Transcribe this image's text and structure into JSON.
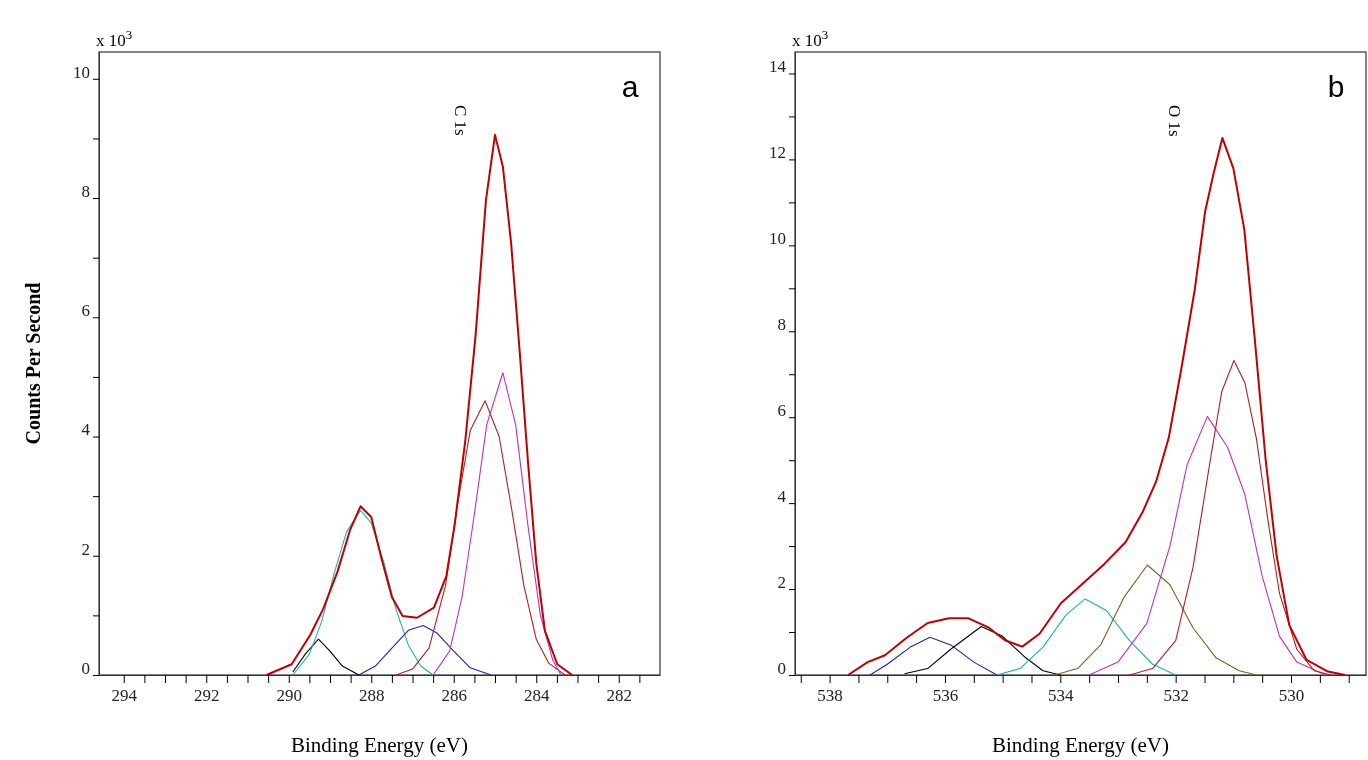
{
  "chart_data": [
    {
      "type": "line",
      "title": "a",
      "xlabel": "Binding Energy (eV)",
      "ylabel": "Counts Per Second",
      "annotations": [
        "x 10$^{3}$",
        "C 1s"
      ],
      "xlim": [
        294.6,
        281
      ],
      "ylim": [
        0,
        10.45
      ],
      "xticks": [
        294,
        {
          "value": 293.5,
          "label": null
        },
        {
          "value": 293,
          "label": null
        },
        {
          "value": 292.5,
          "label": null
        },
        292,
        {
          "value": 291.5,
          "label": null
        },
        {
          "value": 291,
          "label": null
        },
        {
          "value": 290.5,
          "label": null
        },
        290,
        {
          "value": 289.5,
          "label": null
        },
        {
          "value": 289,
          "label": null
        },
        {
          "value": 288.5,
          "label": null
        },
        288,
        {
          "value": 287.5,
          "label": null
        },
        {
          "value": 287,
          "label": null
        },
        {
          "value": 286.5,
          "label": null
        },
        286,
        {
          "value": 285.5,
          "label": null
        },
        {
          "value": 285,
          "label": null
        },
        {
          "value": 284.5,
          "label": null
        },
        284,
        {
          "value": 283.5,
          "label": null
        },
        {
          "value": 283,
          "label": null
        },
        {
          "value": 282.5,
          "label": null
        },
        282,
        {
          "value": 281.5,
          "label": null
        }
      ],
      "yticks": [
        0,
        {
          "value": 1,
          "label": null
        },
        2,
        {
          "value": 3,
          "label": null
        },
        4,
        {
          "value": 5,
          "label": null
        },
        6,
        {
          "value": 7,
          "label": null
        },
        8,
        {
          "value": 9,
          "label": null
        },
        10
      ],
      "series": [
        {
          "color": "#000000",
          "x": [
            289.9,
            289.6,
            289.28,
            289.0,
            288.7,
            288.3
          ],
          "values": [
            0.05,
            0.35,
            0.6,
            0.4,
            0.15,
            0
          ]
        },
        {
          "color": "#20b0b0",
          "x": [
            289.9,
            289.5,
            289.2,
            288.9,
            288.6,
            288.26,
            288.0,
            287.7,
            287.4,
            287.1,
            286.8,
            286.5
          ],
          "values": [
            0,
            0.35,
            0.9,
            1.7,
            2.4,
            2.76,
            2.55,
            1.9,
            1.1,
            0.5,
            0.15,
            0
          ]
        },
        {
          "color": "#2020c0",
          "x": [
            288.3,
            287.9,
            287.5,
            287.1,
            286.74,
            286.4,
            286.0,
            285.6,
            285.1
          ],
          "values": [
            0,
            0.15,
            0.45,
            0.75,
            0.83,
            0.7,
            0.4,
            0.12,
            0
          ]
        },
        {
          "color": "#b02020",
          "x": [
            287.4,
            287.0,
            286.6,
            286.2,
            285.9,
            285.6,
            285.24,
            284.9,
            284.6,
            284.3,
            284.0,
            283.7,
            283.3
          ],
          "values": [
            0,
            0.1,
            0.45,
            1.5,
            2.9,
            4.1,
            4.6,
            4.0,
            2.8,
            1.5,
            0.6,
            0.2,
            0
          ]
        },
        {
          "color": "#c030c0",
          "x": [
            286.5,
            286.1,
            285.8,
            285.5,
            285.2,
            284.81,
            284.5,
            284.2,
            283.9,
            283.6,
            283.4
          ],
          "values": [
            0,
            0.4,
            1.3,
            2.7,
            4.2,
            5.07,
            4.2,
            2.5,
            1.0,
            0.25,
            0
          ]
        },
        {
          "color": "#c00000",
          "x": [
            290.54,
            289.93,
            289.48,
            289.17,
            288.82,
            288.51,
            288.26,
            288.0,
            287.75,
            287.5,
            287.24,
            286.89,
            286.48,
            286.18,
            285.98,
            285.72,
            285.47,
            285.22,
            285.0,
            284.81,
            284.61,
            284.4,
            284.2,
            284.0,
            283.79,
            283.49,
            283.13
          ],
          "values": [
            0,
            0.18,
            0.67,
            1.1,
            1.73,
            2.44,
            2.83,
            2.65,
            1.95,
            1.31,
            0.99,
            0.96,
            1.13,
            1.66,
            2.51,
            3.93,
            5.7,
            7.96,
            9.06,
            8.53,
            7.25,
            5.41,
            3.57,
            1.88,
            0.74,
            0.18,
            0
          ]
        }
      ]
    },
    {
      "type": "line",
      "title": "b",
      "xlabel": "Binding Energy (eV)",
      "annotations": [
        "x 10$^{3}$",
        "O 1s"
      ],
      "xlim": [
        538.6,
        528.7
      ],
      "ylim": [
        0,
        14.5
      ],
      "xticks": [
        {
          "value": 538.5,
          "label": null
        },
        538,
        {
          "value": 537.5,
          "label": null
        },
        {
          "value": 537,
          "label": null
        },
        {
          "value": 536.5,
          "label": null
        },
        536,
        {
          "value": 535.5,
          "label": null
        },
        {
          "value": 535,
          "label": null
        },
        {
          "value": 534.5,
          "label": null
        },
        534,
        {
          "value": 533.5,
          "label": null
        },
        {
          "value": 533,
          "label": null
        },
        {
          "value": 532.5,
          "label": null
        },
        532,
        {
          "value": 531.5,
          "label": null
        },
        {
          "value": 531,
          "label": null
        },
        {
          "value": 530.5,
          "label": null
        },
        530,
        {
          "value": 529.5,
          "label": null
        },
        {
          "value": 529,
          "label": null
        }
      ],
      "yticks": [
        0,
        {
          "value": 1,
          "label": null
        },
        2,
        {
          "value": 3,
          "label": null
        },
        4,
        {
          "value": 5,
          "label": null
        },
        6,
        {
          "value": 7,
          "label": null
        },
        8,
        {
          "value": 9,
          "label": null
        },
        10,
        {
          "value": 11,
          "label": null
        },
        12,
        {
          "value": 13,
          "label": null
        },
        14
      ],
      "series": [
        {
          "color": "#2020c0",
          "x": [
            537.3,
            537.0,
            536.6,
            536.26,
            535.9,
            535.5,
            535.1
          ],
          "values": [
            0,
            0.25,
            0.65,
            0.88,
            0.7,
            0.3,
            0
          ]
        },
        {
          "color": "#000000",
          "x": [
            536.7,
            536.3,
            535.9,
            535.37,
            535.0,
            534.6,
            534.3,
            534.0
          ],
          "values": [
            0.03,
            0.15,
            0.6,
            1.13,
            0.9,
            0.4,
            0.1,
            0
          ]
        },
        {
          "color": "#20b0b0",
          "x": [
            535.1,
            534.7,
            534.3,
            533.9,
            533.57,
            533.2,
            532.8,
            532.4,
            532.0
          ],
          "values": [
            0,
            0.15,
            0.65,
            1.4,
            1.77,
            1.5,
            0.8,
            0.25,
            0
          ]
        },
        {
          "color": "#806020",
          "x": [
            534.1,
            533.7,
            533.3,
            532.9,
            532.49,
            532.1,
            531.7,
            531.3,
            530.9,
            530.6
          ],
          "values": [
            0,
            0.15,
            0.7,
            1.8,
            2.56,
            2.1,
            1.1,
            0.4,
            0.1,
            0
          ]
        },
        {
          "color": "#c030c0",
          "x": [
            533.5,
            533.0,
            532.5,
            532.1,
            531.8,
            531.45,
            531.1,
            530.8,
            530.5,
            530.2,
            529.9,
            529.4
          ],
          "values": [
            0,
            0.3,
            1.2,
            3.0,
            4.9,
            6.02,
            5.3,
            4.2,
            2.3,
            0.9,
            0.3,
            0
          ]
        },
        {
          "color": "#b02020",
          "x": [
            532.8,
            532.4,
            532.0,
            531.7,
            531.4,
            531.2,
            530.99,
            530.8,
            530.6,
            530.4,
            530.2,
            529.9,
            529.6,
            529.3
          ],
          "values": [
            0,
            0.15,
            0.8,
            2.5,
            5.0,
            6.6,
            7.32,
            6.8,
            5.5,
            3.6,
            1.9,
            0.6,
            0.1,
            0
          ]
        },
        {
          "color": "#c00000",
          "x": [
            537.68,
            537.34,
            537.04,
            536.67,
            536.3,
            535.93,
            535.59,
            535.25,
            534.96,
            534.66,
            534.36,
            533.99,
            533.61,
            533.24,
            532.87,
            532.57,
            532.34,
            532.12,
            531.9,
            531.67,
            531.49,
            531.34,
            531.19,
            531.0,
            530.81,
            530.63,
            530.44,
            530.25,
            530.03,
            529.73,
            529.36,
            529.06
          ],
          "values": [
            0,
            0.3,
            0.46,
            0.86,
            1.21,
            1.32,
            1.32,
            1.11,
            0.81,
            0.66,
            0.96,
            1.67,
            2.13,
            2.58,
            3.09,
            3.8,
            4.5,
            5.52,
            7.14,
            8.96,
            10.78,
            11.69,
            12.5,
            11.79,
            10.37,
            7.84,
            5.01,
            2.78,
            1.16,
            0.35,
            0.08,
            0
          ]
        }
      ]
    }
  ]
}
